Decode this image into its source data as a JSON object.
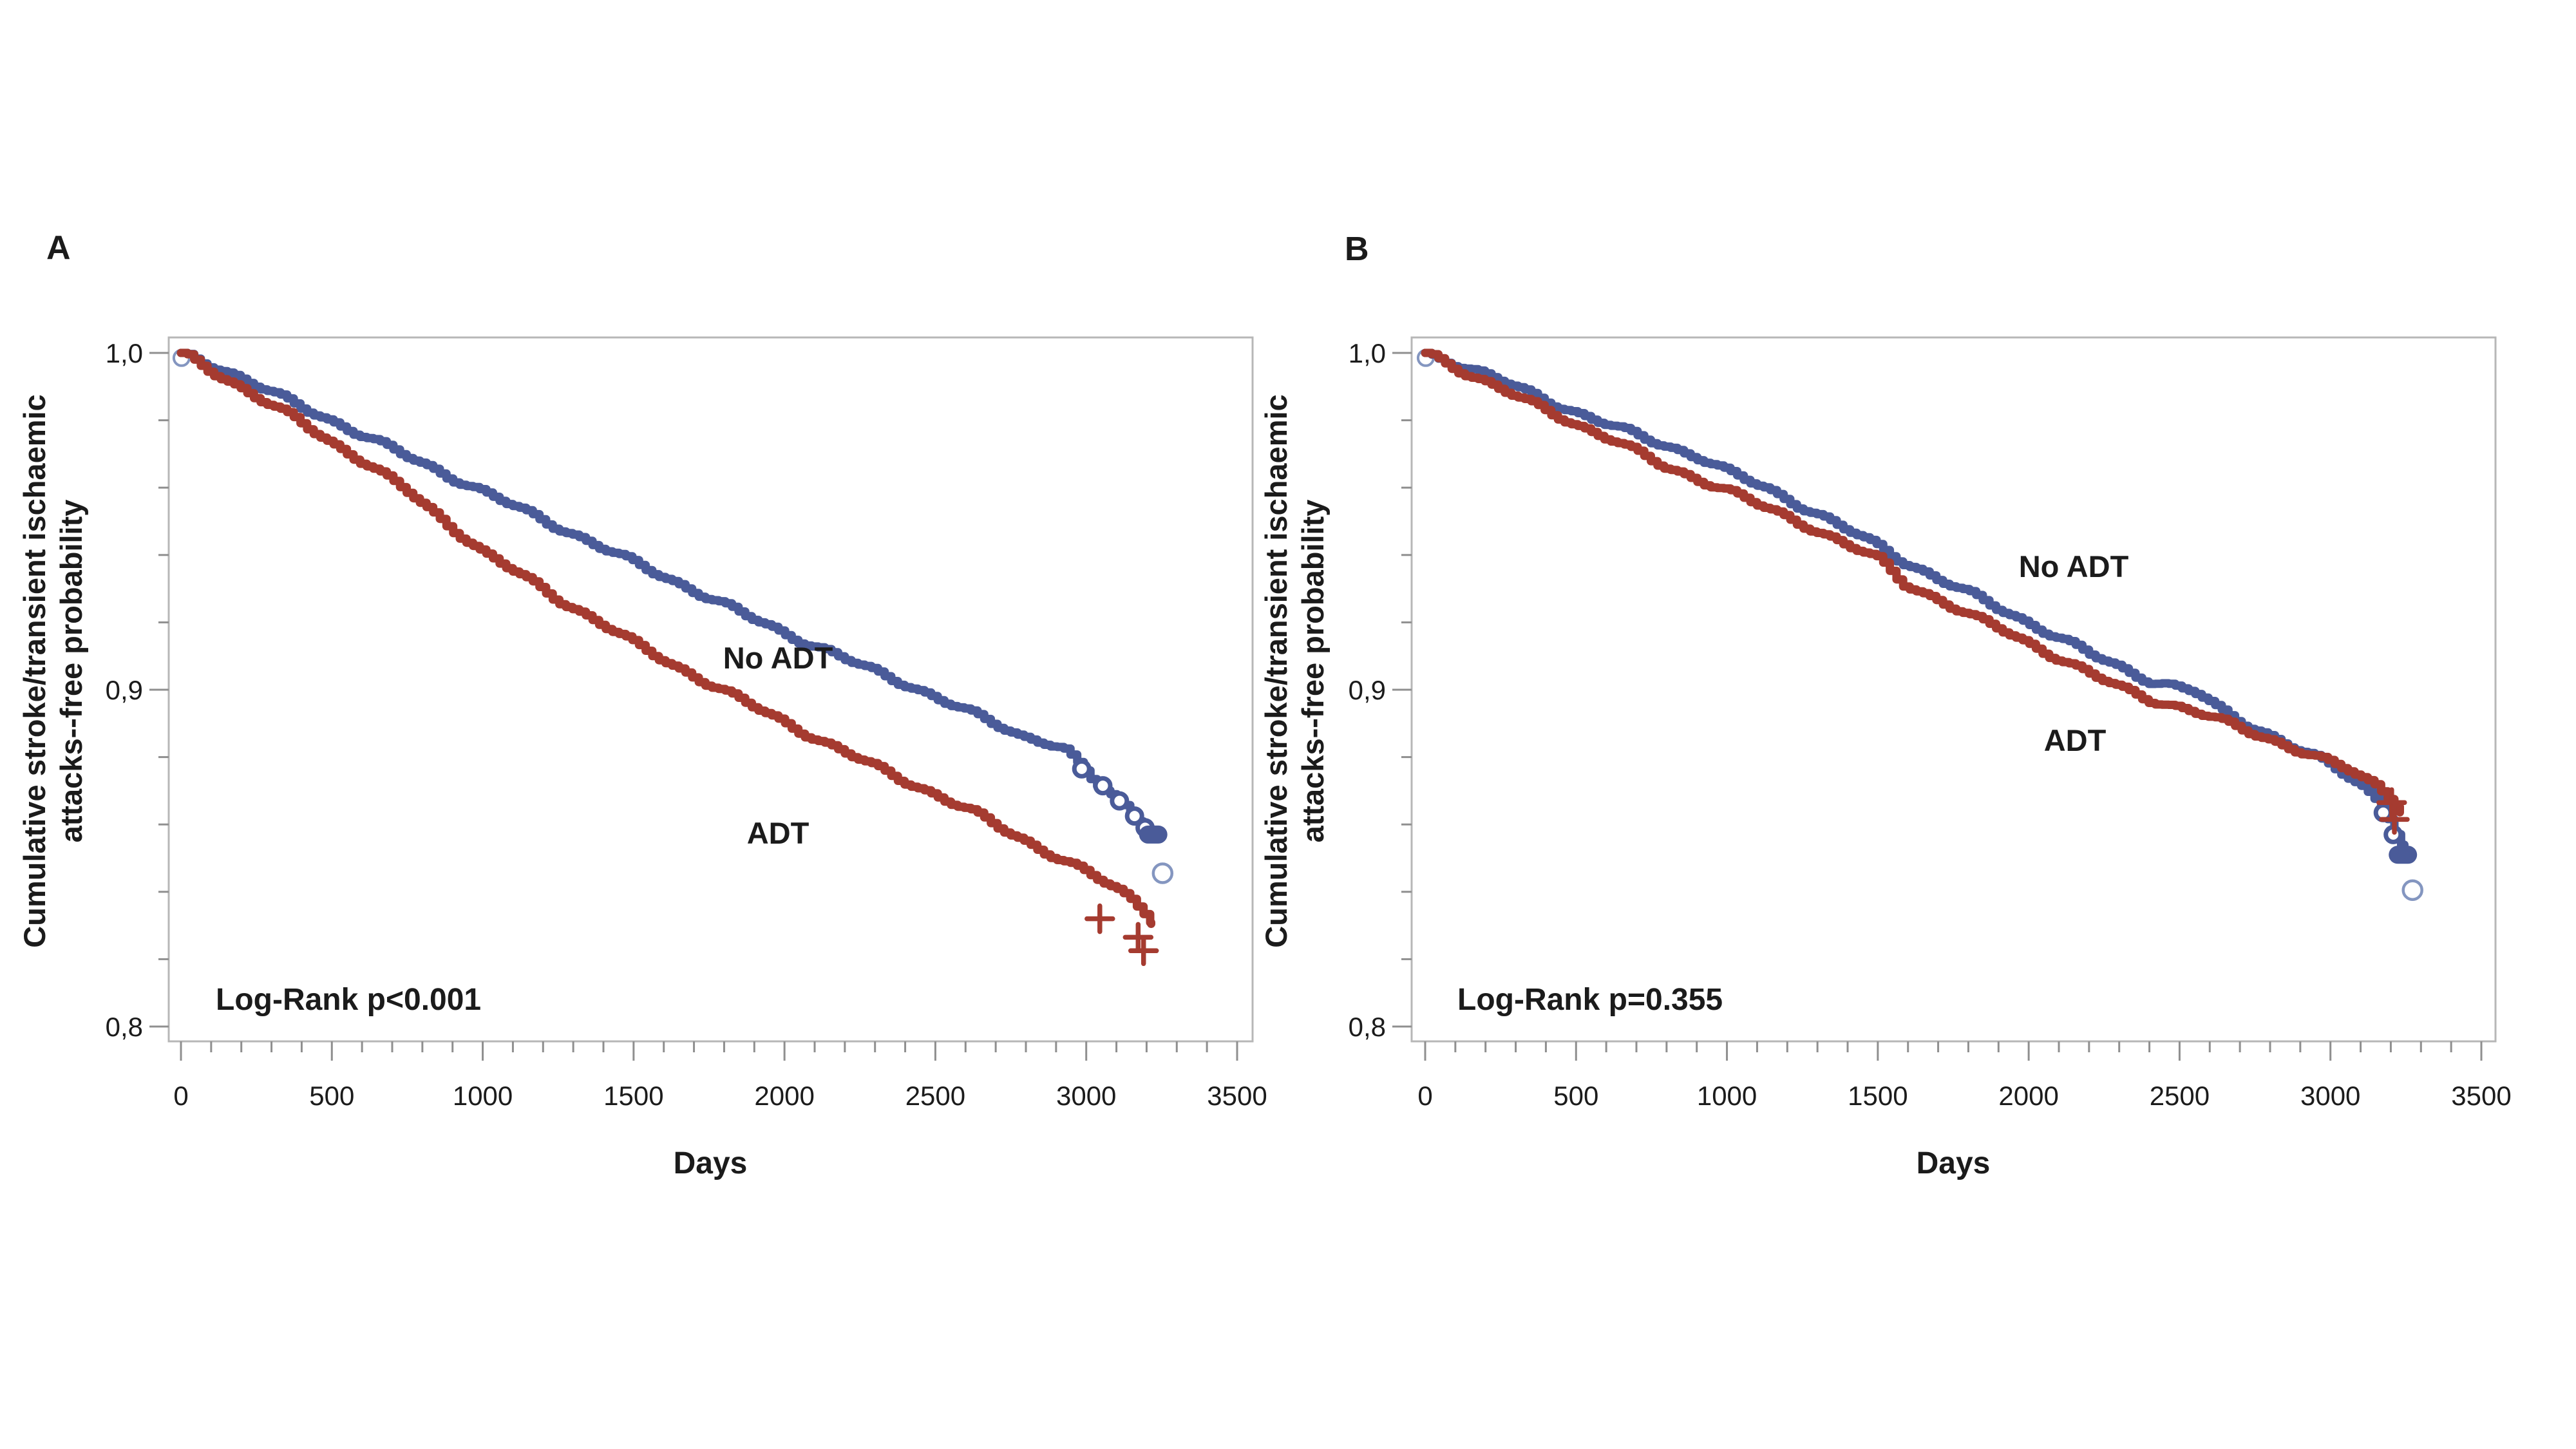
{
  "colors": {
    "axis": "#b7b7b7",
    "tick": "#8f8f8f",
    "text": "#1b1b1b",
    "censor_outline": "#8496c0",
    "background": "#ffffff"
  },
  "chart_data": [
    {
      "type": "line",
      "panel": "A",
      "xlabel": "Days",
      "ylabel_line1": "Cumulative stroke/transient ischaemic",
      "ylabel_line2": "attacks--free probability",
      "annotation": "Log-Rank p<0.001",
      "xlim": [
        0,
        3580
      ],
      "ylim": [
        0.795,
        1.005
      ],
      "x_ticks": [
        0,
        500,
        1000,
        1500,
        2000,
        2500,
        3000,
        3500
      ],
      "x_minor_step": 100,
      "y_ticks": [
        1.0,
        0.9,
        0.8
      ],
      "y_tick_labels": [
        "1,0",
        "0,9",
        "0,8"
      ],
      "y_minor_step": 0.02,
      "grid": false,
      "legend": "inline-labels",
      "start_censor_circle": [
        2,
        0.9985
      ],
      "series": [
        {
          "name": "No ADT",
          "color": "#4a5b99",
          "points": [
            [
              0,
              1.0
            ],
            [
              120,
              0.9955
            ],
            [
              250,
              0.99
            ],
            [
              380,
              0.9845
            ],
            [
              500,
              0.9795
            ],
            [
              620,
              0.9745
            ],
            [
              750,
              0.969
            ],
            [
              880,
              0.9635
            ],
            [
              1000,
              0.9585
            ],
            [
              1120,
              0.9535
            ],
            [
              1250,
              0.948
            ],
            [
              1380,
              0.9425
            ],
            [
              1500,
              0.9375
            ],
            [
              1620,
              0.9325
            ],
            [
              1750,
              0.927
            ],
            [
              1880,
              0.9215
            ],
            [
              2000,
              0.9165
            ],
            [
              2120,
              0.912
            ],
            [
              2250,
              0.907
            ],
            [
              2400,
              0.9015
            ],
            [
              2500,
              0.8975
            ],
            [
              2600,
              0.8935
            ],
            [
              2700,
              0.8895
            ],
            [
              2780,
              0.8862
            ],
            [
              2860,
              0.8845
            ],
            [
              2920,
              0.8825
            ],
            [
              2980,
              0.8768
            ],
            [
              3030,
              0.872
            ],
            [
              3090,
              0.868
            ],
            [
              3150,
              0.8635
            ],
            [
              3200,
              0.8585
            ],
            [
              3225,
              0.857
            ]
          ],
          "censor_circles": [
            [
              2985,
              0.8765
            ],
            [
              3055,
              0.8715
            ],
            [
              3110,
              0.867
            ],
            [
              3160,
              0.8625
            ],
            [
              3195,
              0.859
            ]
          ],
          "end_cap": [
            3222,
            0.857
          ],
          "outlier_circle": [
            3253,
            0.8455
          ]
        },
        {
          "name": "ADT",
          "color": "#a53b30",
          "points": [
            [
              0,
              1.0
            ],
            [
              120,
              0.9935
            ],
            [
              250,
              0.9865
            ],
            [
              380,
              0.98
            ],
            [
              500,
              0.973
            ],
            [
              620,
              0.9665
            ],
            [
              750,
              0.9585
            ],
            [
              880,
              0.949
            ],
            [
              1000,
              0.9405
            ],
            [
              1120,
              0.934
            ],
            [
              1250,
              0.9265
            ],
            [
              1380,
              0.92
            ],
            [
              1500,
              0.9135
            ],
            [
              1620,
              0.9075
            ],
            [
              1750,
              0.9015
            ],
            [
              1880,
              0.8955
            ],
            [
              2000,
              0.89
            ],
            [
              2120,
              0.8845
            ],
            [
              2250,
              0.879
            ],
            [
              2380,
              0.8735
            ],
            [
              2500,
              0.8685
            ],
            [
              2620,
              0.8635
            ],
            [
              2750,
              0.857
            ],
            [
              2880,
              0.851
            ],
            [
              3000,
              0.8455
            ],
            [
              3100,
              0.8405
            ],
            [
              3150,
              0.8375
            ],
            [
              3200,
              0.8335
            ],
            [
              3215,
              0.8315
            ]
          ],
          "censor_plus": [
            [
              3045,
              0.832
            ],
            [
              3172,
              0.8265
            ],
            [
              3190,
              0.8225
            ]
          ]
        }
      ]
    },
    {
      "type": "line",
      "panel": "B",
      "xlabel": "Days",
      "ylabel_line1": "Cumulative stroke/transient ischaemic",
      "ylabel_line2": "attacks--free probability",
      "annotation": "Log-Rank p=0.355",
      "xlim": [
        0,
        3580
      ],
      "ylim": [
        0.795,
        1.005
      ],
      "x_ticks": [
        0,
        500,
        1000,
        1500,
        2000,
        2500,
        3000,
        3500
      ],
      "x_minor_step": 100,
      "y_ticks": [
        1.0,
        0.9,
        0.8
      ],
      "y_tick_labels": [
        "1,0",
        "0,9",
        "0,8"
      ],
      "y_minor_step": 0.02,
      "grid": false,
      "legend": "inline-labels",
      "start_censor_circle": [
        2,
        0.9985
      ],
      "series": [
        {
          "name": "No ADT",
          "color": "#4a5b99",
          "points": [
            [
              0,
              1.0
            ],
            [
              120,
              0.996
            ],
            [
              250,
              0.9915
            ],
            [
              380,
              0.9865
            ],
            [
              500,
              0.982
            ],
            [
              620,
              0.978
            ],
            [
              790,
              0.9725
            ],
            [
              900,
              0.969
            ],
            [
              1000,
              0.9645
            ],
            [
              1120,
              0.96
            ],
            [
              1250,
              0.954
            ],
            [
              1380,
              0.948
            ],
            [
              1500,
              0.9425
            ],
            [
              1581,
              0.938
            ],
            [
              1700,
              0.9325
            ],
            [
              1810,
              0.928
            ],
            [
              1900,
              0.924
            ],
            [
              2000,
              0.9195
            ],
            [
              2100,
              0.915
            ],
            [
              2200,
              0.9105
            ],
            [
              2300,
              0.9065
            ],
            [
              2400,
              0.9025
            ],
            [
              2542,
              0.8995
            ],
            [
              2620,
              0.8945
            ],
            [
              2700,
              0.8905
            ],
            [
              2800,
              0.886
            ],
            [
              2900,
              0.8815
            ],
            [
              3000,
              0.8775
            ],
            [
              3060,
              0.874
            ],
            [
              3100,
              0.8715
            ],
            [
              3150,
              0.8675
            ],
            [
              3185,
              0.8635
            ],
            [
              3220,
              0.856
            ],
            [
              3245,
              0.8525
            ]
          ],
          "censor_circles": [
            [
              3175,
              0.8635
            ],
            [
              3208,
              0.857
            ]
          ],
          "end_cap": [
            3240,
            0.851
          ],
          "outlier_circle": [
            3272,
            0.8405
          ]
        },
        {
          "name": "ADT",
          "color": "#a53b30",
          "points": [
            [
              0,
              1.0
            ],
            [
              120,
              0.9945
            ],
            [
              250,
              0.989
            ],
            [
              380,
              0.9835
            ],
            [
              500,
              0.9785
            ],
            [
              620,
              0.974
            ],
            [
              790,
              0.966
            ],
            [
              900,
              0.9625
            ],
            [
              1000,
              0.959
            ],
            [
              1120,
              0.954
            ],
            [
              1250,
              0.949
            ],
            [
              1380,
              0.9435
            ],
            [
              1500,
              0.9385
            ],
            [
              1581,
              0.9315
            ],
            [
              1700,
              0.9265
            ],
            [
              1810,
              0.9215
            ],
            [
              1900,
              0.918
            ],
            [
              2000,
              0.9135
            ],
            [
              2100,
              0.909
            ],
            [
              2200,
              0.9045
            ],
            [
              2300,
              0.9005
            ],
            [
              2400,
              0.897
            ],
            [
              2542,
              0.8935
            ],
            [
              2620,
              0.891
            ],
            [
              2700,
              0.8885
            ],
            [
              2800,
              0.885
            ],
            [
              2900,
              0.8815
            ],
            [
              3000,
              0.878
            ],
            [
              3060,
              0.876
            ],
            [
              3100,
              0.874
            ],
            [
              3150,
              0.8715
            ],
            [
              3200,
              0.8675
            ],
            [
              3230,
              0.8645
            ]
          ],
          "censor_plus": [
            [
              3203,
              0.8665
            ],
            [
              3212,
              0.8615
            ]
          ]
        }
      ]
    }
  ]
}
